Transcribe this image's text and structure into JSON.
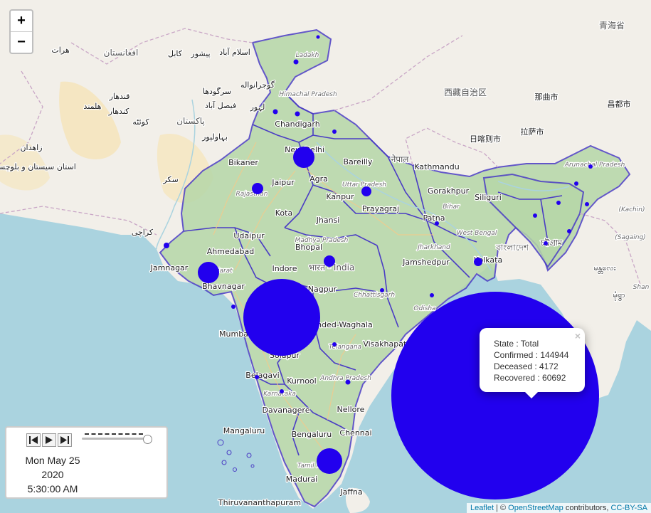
{
  "zoom": {
    "in_label": "+",
    "out_label": "−"
  },
  "labels": {
    "countries": [
      {
        "text": "افغانستان"
      },
      {
        "text": "پاکستان"
      },
      {
        "text": "नेपाल"
      },
      {
        "text": "भारत - India"
      },
      {
        "text": "বাংলাদেশ"
      },
      {
        "text": "西藏自治区"
      },
      {
        "text": "青海省"
      }
    ],
    "cities": [
      {
        "text": "هرات"
      },
      {
        "text": "کابل"
      },
      {
        "text": "اسلام آباد"
      },
      {
        "text": "پیشور"
      },
      {
        "text": "گوجرانواله"
      },
      {
        "text": "قندهار"
      },
      {
        "text": "سرگودها"
      },
      {
        "text": "فيصل آباد"
      },
      {
        "text": "لہور"
      },
      {
        "text": "هلمند"
      },
      {
        "text": "کندهار"
      },
      {
        "text": "کوئٹه"
      },
      {
        "text": "بہاولپور"
      },
      {
        "text": "زاهدان"
      },
      {
        "text": "سکر"
      },
      {
        "text": "کراچی"
      },
      {
        "text": "استان سیستان و بلوچستان"
      },
      {
        "text": "Chandigarh"
      },
      {
        "text": "New Delhi"
      },
      {
        "text": "Bikaner"
      },
      {
        "text": "Jaipur"
      },
      {
        "text": "Agra"
      },
      {
        "text": "Bareilly"
      },
      {
        "text": "Kathmandu"
      },
      {
        "text": "Kanpur"
      },
      {
        "text": "Gorakhpur"
      },
      {
        "text": "Prayagraj"
      },
      {
        "text": "Kota"
      },
      {
        "text": "Udaipur"
      },
      {
        "text": "Jhansi"
      },
      {
        "text": "Patna"
      },
      {
        "text": "Ahmedabad"
      },
      {
        "text": "Bhopal"
      },
      {
        "text": "Jamnagar"
      },
      {
        "text": "Indore"
      },
      {
        "text": "Jamshedpur"
      },
      {
        "text": "Kolkata"
      },
      {
        "text": "Bhavnagar"
      },
      {
        "text": "Nagpur"
      },
      {
        "text": "Mumbai"
      },
      {
        "text": "Nanded-Waghala"
      },
      {
        "text": "Visakhapatnam"
      },
      {
        "text": "Solapur"
      },
      {
        "text": "Belagavi"
      },
      {
        "text": "Kurnool"
      },
      {
        "text": "Davanagere"
      },
      {
        "text": "Nellore"
      },
      {
        "text": "Mangaluru"
      },
      {
        "text": "Bengaluru"
      },
      {
        "text": "Chennai"
      },
      {
        "text": "Madurai"
      },
      {
        "text": "Jaffna"
      },
      {
        "text": "Thiruvananthapuram"
      },
      {
        "text": "日喀则市"
      },
      {
        "text": "拉萨市"
      },
      {
        "text": "那曲市"
      },
      {
        "text": "昌都市"
      },
      {
        "text": "Siliguri"
      },
      {
        "text": "চট্টগ্রাম"
      },
      {
        "text": "မန္တလေး"
      },
      {
        "text": "မုံရွာ"
      }
    ],
    "states": [
      {
        "text": "Ladakh"
      },
      {
        "text": "Himachal Pradesh"
      },
      {
        "text": "Rajasthan"
      },
      {
        "text": "Uttar Pradesh"
      },
      {
        "text": "Bihar"
      },
      {
        "text": "Madhya Pradesh"
      },
      {
        "text": "Gujarat"
      },
      {
        "text": "Jharkhand"
      },
      {
        "text": "West Bengal"
      },
      {
        "text": "Chhattisgarh"
      },
      {
        "text": "Odisha"
      },
      {
        "text": "Telangana"
      },
      {
        "text": "Andhra Pradesh"
      },
      {
        "text": "Karnataka"
      },
      {
        "text": "Tamil Nadu"
      },
      {
        "text": "Arunachal Pradesh"
      },
      {
        "text": "(Kachin)"
      },
      {
        "text": "(Sagaing)"
      },
      {
        "text": "Shan"
      }
    ]
  },
  "popup": {
    "state": "State : Total",
    "confirmed": "Confirmed : 144944",
    "deceased": "Deceased : 4172",
    "recovered": "Recovered : 60692",
    "close": "×"
  },
  "time_control": {
    "date_line1": "Mon May 25",
    "date_line2": "2020",
    "time": "5:30:00 AM",
    "buttons": [
      "step-backward",
      "play",
      "step-forward"
    ]
  },
  "attribution": {
    "leaflet": "Leaflet",
    "sep": " | © ",
    "osm": "OpenStreetMap",
    "contrib": " contributors, ",
    "license": "CC-BY-SA"
  },
  "colors": {
    "marker": "#2200ee",
    "state_border": "#4a3cc4",
    "india_fill": "#b6d7a8",
    "water": "#aad3df",
    "land": "#f2efe9"
  }
}
